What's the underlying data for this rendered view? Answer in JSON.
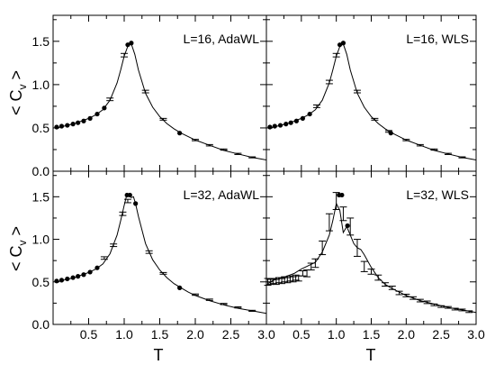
{
  "chart_data": {
    "type": "scatter",
    "xlabel": "T",
    "ylabel": "< C",
    "ylabel_subscript": "v",
    "ylabel_close": " >",
    "xlim": [
      0.0,
      3.0
    ],
    "ylim": [
      0.0,
      1.8
    ],
    "xticks": [
      0.5,
      1.0,
      1.5,
      2.0,
      2.5,
      3.0
    ],
    "xtick_labels": [
      "0.5",
      "1.0",
      "1.5",
      "2.0",
      "2.5",
      "3.0"
    ],
    "yticks": [
      0.0,
      0.5,
      1.0,
      1.5
    ],
    "ytick_labels": [
      "0.0",
      "0.5",
      "1.0",
      "1.5"
    ],
    "grid": false,
    "panels": [
      {
        "label": "L=16, AdaWL",
        "curve": {
          "x": [
            0.05,
            0.1,
            0.2,
            0.3,
            0.4,
            0.5,
            0.6,
            0.7,
            0.8,
            0.9,
            0.95,
            1.0,
            1.05,
            1.08,
            1.1,
            1.15,
            1.2,
            1.3,
            1.4,
            1.5,
            1.6,
            1.7,
            1.8,
            1.9,
            2.0,
            2.2,
            2.4,
            2.6,
            2.8,
            3.0
          ],
          "y": [
            0.5,
            0.51,
            0.53,
            0.55,
            0.58,
            0.61,
            0.65,
            0.71,
            0.82,
            1.02,
            1.17,
            1.33,
            1.44,
            1.48,
            1.47,
            1.35,
            1.17,
            0.9,
            0.74,
            0.63,
            0.55,
            0.49,
            0.44,
            0.4,
            0.36,
            0.3,
            0.24,
            0.2,
            0.16,
            0.13
          ]
        },
        "points": {
          "x": [
            0.05,
            0.12,
            0.2,
            0.28,
            0.35,
            0.43,
            0.52,
            0.62,
            0.72,
            1.05,
            1.1,
            1.78
          ],
          "y": [
            0.51,
            0.52,
            0.53,
            0.545,
            0.56,
            0.58,
            0.61,
            0.66,
            0.73,
            1.46,
            1.48,
            0.44
          ]
        },
        "errorbars": {
          "x": [
            0.8,
            1.0,
            1.3,
            1.55,
            2.0,
            2.2,
            2.4,
            2.6,
            2.8
          ],
          "y": [
            0.83,
            1.34,
            0.92,
            0.6,
            0.36,
            0.3,
            0.25,
            0.2,
            0.16
          ],
          "err": [
            0.015,
            0.02,
            0.015,
            0.01,
            0.008,
            0.008,
            0.007,
            0.007,
            0.006
          ]
        }
      },
      {
        "label": "L=16, WLS",
        "curve": {
          "x": [
            0.05,
            0.1,
            0.2,
            0.3,
            0.4,
            0.5,
            0.6,
            0.7,
            0.8,
            0.9,
            0.95,
            1.0,
            1.05,
            1.08,
            1.1,
            1.15,
            1.2,
            1.3,
            1.4,
            1.5,
            1.6,
            1.7,
            1.8,
            1.9,
            2.0,
            2.2,
            2.4,
            2.6,
            2.8,
            3.0
          ],
          "y": [
            0.5,
            0.51,
            0.53,
            0.55,
            0.58,
            0.61,
            0.65,
            0.71,
            0.82,
            1.02,
            1.17,
            1.33,
            1.44,
            1.48,
            1.47,
            1.35,
            1.17,
            0.9,
            0.74,
            0.63,
            0.55,
            0.49,
            0.44,
            0.4,
            0.36,
            0.3,
            0.24,
            0.2,
            0.16,
            0.13
          ]
        },
        "points": {
          "x": [
            0.05,
            0.12,
            0.2,
            0.28,
            0.35,
            0.43,
            0.52,
            0.62,
            1.05,
            1.1,
            1.78
          ],
          "y": [
            0.51,
            0.52,
            0.53,
            0.545,
            0.56,
            0.58,
            0.61,
            0.66,
            1.46,
            1.48,
            0.44
          ]
        },
        "errorbars": {
          "x": [
            0.72,
            0.9,
            1.0,
            1.3,
            1.55,
            1.75,
            2.0,
            2.2,
            2.4,
            2.6,
            2.8
          ],
          "y": [
            0.75,
            1.03,
            1.34,
            0.92,
            0.6,
            0.46,
            0.36,
            0.3,
            0.25,
            0.2,
            0.16
          ],
          "err": [
            0.015,
            0.02,
            0.02,
            0.015,
            0.01,
            0.01,
            0.008,
            0.008,
            0.007,
            0.007,
            0.006
          ]
        }
      },
      {
        "label": "L=32, AdaWL",
        "curve": {
          "x": [
            0.05,
            0.1,
            0.2,
            0.3,
            0.4,
            0.5,
            0.6,
            0.7,
            0.8,
            0.9,
            0.95,
            1.0,
            1.03,
            1.06,
            1.1,
            1.13,
            1.16,
            1.2,
            1.3,
            1.4,
            1.5,
            1.6,
            1.7,
            1.8,
            1.9,
            2.0,
            2.2,
            2.4,
            2.6,
            2.8,
            3.0
          ],
          "y": [
            0.5,
            0.51,
            0.53,
            0.55,
            0.58,
            0.61,
            0.65,
            0.71,
            0.83,
            1.05,
            1.22,
            1.4,
            1.5,
            1.52,
            1.49,
            1.5,
            1.42,
            1.27,
            0.95,
            0.76,
            0.64,
            0.55,
            0.48,
            0.43,
            0.38,
            0.34,
            0.28,
            0.23,
            0.19,
            0.16,
            0.13
          ]
        },
        "points": {
          "x": [
            0.05,
            0.12,
            0.2,
            0.28,
            0.35,
            0.43,
            0.52,
            0.62,
            1.04,
            1.08,
            1.16,
            1.78
          ],
          "y": [
            0.51,
            0.52,
            0.535,
            0.55,
            0.565,
            0.585,
            0.615,
            0.665,
            1.52,
            1.52,
            1.42,
            0.43
          ]
        },
        "errorbars": {
          "x": [
            0.72,
            0.85,
            0.98,
            1.05,
            1.35,
            1.55,
            2.0,
            2.2,
            2.4,
            2.6,
            2.8
          ],
          "y": [
            0.78,
            0.93,
            1.3,
            1.45,
            0.85,
            0.6,
            0.35,
            0.29,
            0.24,
            0.2,
            0.16
          ],
          "err": [
            0.015,
            0.015,
            0.02,
            0.02,
            0.015,
            0.01,
            0.008,
            0.008,
            0.007,
            0.007,
            0.006
          ]
        }
      },
      {
        "label": "L=32, WLS",
        "curve": {
          "x": [
            0.02,
            0.1,
            0.2,
            0.3,
            0.4,
            0.5,
            0.6,
            0.7,
            0.8,
            0.9,
            0.95,
            1.0,
            1.05,
            1.1,
            1.15,
            1.2,
            1.25,
            1.3,
            1.35,
            1.4,
            1.5,
            1.6,
            1.7,
            1.8,
            1.9,
            2.0,
            2.2,
            2.4,
            2.6,
            2.8,
            3.0
          ],
          "y": [
            0.48,
            0.52,
            0.54,
            0.57,
            0.6,
            0.65,
            0.69,
            0.73,
            0.85,
            1.05,
            1.22,
            1.42,
            1.34,
            1.08,
            1.15,
            1.05,
            0.95,
            0.9,
            0.88,
            0.82,
            0.67,
            0.55,
            0.47,
            0.42,
            0.38,
            0.34,
            0.28,
            0.24,
            0.2,
            0.17,
            0.14
          ]
        },
        "points": {
          "x": [
            1.04,
            1.08,
            1.16
          ],
          "y": [
            1.52,
            1.52,
            1.16
          ]
        },
        "errorbars": {
          "x": [
            0.02,
            0.06,
            0.1,
            0.14,
            0.18,
            0.22,
            0.26,
            0.3,
            0.34,
            0.38,
            0.42,
            0.46,
            0.52,
            0.58,
            0.64,
            0.7,
            0.8,
            0.9,
            1.0,
            1.1,
            1.2,
            1.3,
            1.4,
            1.5,
            1.6,
            1.7,
            1.8,
            1.9,
            2.0,
            2.1,
            2.2,
            2.3,
            2.4,
            2.5,
            2.6,
            2.7,
            2.8,
            2.9
          ],
          "y": [
            0.5,
            0.5,
            0.51,
            0.5,
            0.52,
            0.51,
            0.53,
            0.52,
            0.54,
            0.53,
            0.55,
            0.54,
            0.6,
            0.6,
            0.68,
            0.72,
            0.9,
            1.2,
            1.45,
            1.3,
            1.15,
            0.9,
            0.68,
            0.62,
            0.55,
            0.47,
            0.43,
            0.37,
            0.34,
            0.31,
            0.28,
            0.26,
            0.23,
            0.21,
            0.2,
            0.18,
            0.17,
            0.15
          ],
          "err": [
            0.04,
            0.03,
            0.03,
            0.03,
            0.03,
            0.03,
            0.03,
            0.03,
            0.03,
            0.03,
            0.03,
            0.03,
            0.03,
            0.04,
            0.04,
            0.05,
            0.08,
            0.1,
            0.1,
            0.08,
            0.1,
            0.1,
            0.06,
            0.03,
            0.03,
            0.02,
            0.02,
            0.02,
            0.015,
            0.015,
            0.015,
            0.015,
            0.01,
            0.01,
            0.01,
            0.01,
            0.01,
            0.01
          ]
        }
      }
    ]
  }
}
